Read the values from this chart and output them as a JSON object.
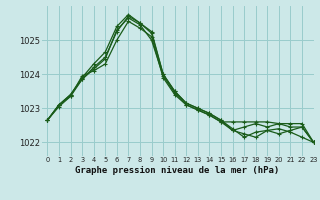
{
  "title": "Graphe pression niveau de la mer (hPa)",
  "background_color": "#cce8e8",
  "grid_color": "#99cccc",
  "line_color": "#1a5c1a",
  "xlim": [
    -0.5,
    23
  ],
  "ylim": [
    1021.6,
    1026.0
  ],
  "yticks": [
    1022,
    1023,
    1024,
    1025
  ],
  "xticks": [
    0,
    1,
    2,
    3,
    4,
    5,
    6,
    7,
    8,
    9,
    10,
    11,
    12,
    13,
    14,
    15,
    16,
    17,
    18,
    19,
    20,
    21,
    22,
    23
  ],
  "series": [
    [
      1022.65,
      1023.1,
      1023.4,
      1023.85,
      1024.2,
      1024.5,
      1025.25,
      1025.7,
      1025.5,
      1025.25,
      1024.0,
      1023.5,
      1023.15,
      1023.0,
      1022.85,
      1022.65,
      1022.4,
      1022.15,
      1022.3,
      1022.35,
      1022.4,
      1022.3,
      1022.15,
      1022.0
    ],
    [
      1022.65,
      1023.1,
      1023.4,
      1023.9,
      1024.3,
      1024.65,
      1025.4,
      1025.75,
      1025.5,
      1025.2,
      1024.0,
      1023.5,
      1023.15,
      1023.0,
      1022.85,
      1022.65,
      1022.35,
      1022.45,
      1022.55,
      1022.45,
      1022.55,
      1022.45,
      1022.45,
      1022.0
    ],
    [
      1022.65,
      1023.1,
      1023.35,
      1023.85,
      1024.15,
      1024.45,
      1025.3,
      1025.65,
      1025.45,
      1025.0,
      1023.95,
      1023.45,
      1023.1,
      1022.95,
      1022.8,
      1022.6,
      1022.35,
      1022.25,
      1022.15,
      1022.35,
      1022.25,
      1022.35,
      1022.45,
      1022.0
    ],
    [
      1022.65,
      1023.05,
      1023.35,
      1023.95,
      1024.1,
      1024.3,
      1025.0,
      1025.55,
      1025.35,
      1025.1,
      1023.9,
      1023.4,
      1023.1,
      1022.95,
      1022.8,
      1022.6,
      1022.6,
      1022.6,
      1022.6,
      1022.6,
      1022.55,
      1022.55,
      1022.55,
      1022.0
    ]
  ]
}
